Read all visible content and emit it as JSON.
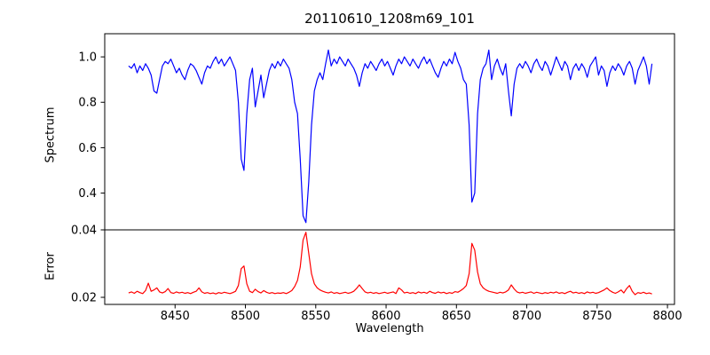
{
  "chart_data": {
    "type": "line",
    "title": "20110610_1208m69_101",
    "xlabel": "Wavelength",
    "grid": false,
    "legend": "none",
    "xlim": [
      8400,
      8805
    ],
    "x_ticks": [
      "8450",
      "8500",
      "8550",
      "8600",
      "8650",
      "8700",
      "8750",
      "8800"
    ],
    "x_start": 8417,
    "x_step": 2,
    "line_color_spectrum": "#0000ff",
    "line_color_error": "#ff0000",
    "panels": [
      {
        "ylabel": "Spectrum",
        "ylim": [
          0.238,
          1.102
        ],
        "y_ticks": [
          "0.4",
          "0.6",
          "0.8",
          "1.0"
        ],
        "features_note": "absorption lines near 8436, 8498, 8542, 8662, 8688 Angstrom",
        "series": [
          {
            "name": "spectrum",
            "color": "#0000ff",
            "values": [
              0.96,
              0.95,
              0.97,
              0.93,
              0.96,
              0.94,
              0.97,
              0.95,
              0.92,
              0.85,
              0.84,
              0.9,
              0.96,
              0.98,
              0.97,
              0.99,
              0.96,
              0.93,
              0.95,
              0.92,
              0.9,
              0.94,
              0.97,
              0.96,
              0.94,
              0.91,
              0.88,
              0.93,
              0.96,
              0.95,
              0.98,
              1.0,
              0.97,
              0.99,
              0.96,
              0.98,
              1.0,
              0.97,
              0.94,
              0.8,
              0.55,
              0.5,
              0.75,
              0.9,
              0.95,
              0.78,
              0.85,
              0.92,
              0.82,
              0.88,
              0.94,
              0.97,
              0.95,
              0.98,
              0.96,
              0.99,
              0.97,
              0.95,
              0.9,
              0.8,
              0.75,
              0.55,
              0.3,
              0.27,
              0.45,
              0.7,
              0.85,
              0.9,
              0.93,
              0.9,
              0.97,
              1.03,
              0.96,
              0.99,
              0.97,
              1.0,
              0.98,
              0.96,
              0.99,
              0.97,
              0.95,
              0.92,
              0.87,
              0.93,
              0.97,
              0.95,
              0.98,
              0.96,
              0.94,
              0.97,
              0.99,
              0.96,
              0.98,
              0.95,
              0.92,
              0.96,
              0.99,
              0.97,
              1.0,
              0.98,
              0.96,
              0.99,
              0.97,
              0.95,
              0.98,
              1.0,
              0.97,
              0.99,
              0.96,
              0.93,
              0.91,
              0.95,
              0.98,
              0.96,
              0.99,
              0.97,
              1.02,
              0.98,
              0.95,
              0.9,
              0.88,
              0.7,
              0.36,
              0.4,
              0.75,
              0.9,
              0.95,
              0.97,
              1.03,
              0.9,
              0.96,
              0.99,
              0.95,
              0.92,
              0.97,
              0.85,
              0.74,
              0.88,
              0.95,
              0.97,
              0.95,
              0.98,
              0.96,
              0.93,
              0.97,
              0.99,
              0.96,
              0.94,
              0.98,
              0.96,
              0.92,
              0.96,
              1.0,
              0.97,
              0.94,
              0.98,
              0.96,
              0.9,
              0.95,
              0.97,
              0.94,
              0.97,
              0.95,
              0.91,
              0.96,
              0.98,
              1.0,
              0.92,
              0.96,
              0.94,
              0.87,
              0.93,
              0.96,
              0.94,
              0.97,
              0.95,
              0.92,
              0.96,
              0.98,
              0.95,
              0.88,
              0.94,
              0.97,
              1.0,
              0.96,
              0.88,
              0.97
            ]
          }
        ]
      },
      {
        "ylabel": "Error",
        "ylim": [
          0.0179,
          0.04
        ],
        "y_ticks": [
          "0.02",
          "0.04"
        ],
        "features_note": "error spikes at absorption-line wavelengths 8498, 8542, 8662",
        "series": [
          {
            "name": "error",
            "color": "#ff0000",
            "values": [
              0.0213,
              0.0216,
              0.0212,
              0.0218,
              0.0214,
              0.0211,
              0.022,
              0.0242,
              0.0218,
              0.0222,
              0.0228,
              0.0216,
              0.0213,
              0.0217,
              0.0226,
              0.0214,
              0.0212,
              0.0216,
              0.0213,
              0.0215,
              0.0212,
              0.0214,
              0.0211,
              0.0215,
              0.0218,
              0.0228,
              0.0216,
              0.0212,
              0.0214,
              0.0211,
              0.0213,
              0.021,
              0.0214,
              0.0212,
              0.0215,
              0.0213,
              0.0211,
              0.0214,
              0.0218,
              0.0235,
              0.0285,
              0.0293,
              0.024,
              0.0218,
              0.0214,
              0.0224,
              0.0217,
              0.0213,
              0.022,
              0.0215,
              0.0212,
              0.0214,
              0.0211,
              0.0213,
              0.0212,
              0.0214,
              0.0211,
              0.0215,
              0.022,
              0.0232,
              0.025,
              0.029,
              0.037,
              0.0393,
              0.033,
              0.027,
              0.024,
              0.0228,
              0.0222,
              0.0218,
              0.0215,
              0.0213,
              0.0216,
              0.0212,
              0.0214,
              0.0211,
              0.0213,
              0.0215,
              0.0212,
              0.0214,
              0.0218,
              0.0226,
              0.0237,
              0.0226,
              0.0216,
              0.0213,
              0.0215,
              0.0212,
              0.0214,
              0.0211,
              0.0213,
              0.0215,
              0.0212,
              0.0214,
              0.0216,
              0.0211,
              0.0228,
              0.0222,
              0.0213,
              0.0215,
              0.0212,
              0.0214,
              0.0211,
              0.0216,
              0.0213,
              0.0215,
              0.0212,
              0.0218,
              0.0214,
              0.0212,
              0.0216,
              0.0213,
              0.0215,
              0.0211,
              0.0214,
              0.0212,
              0.0217,
              0.0215,
              0.022,
              0.0226,
              0.0235,
              0.027,
              0.036,
              0.034,
              0.0275,
              0.024,
              0.0228,
              0.0222,
              0.0218,
              0.0216,
              0.0214,
              0.0212,
              0.0215,
              0.0213,
              0.0216,
              0.0222,
              0.0237,
              0.0225,
              0.0216,
              0.0213,
              0.0215,
              0.0212,
              0.0214,
              0.0216,
              0.0212,
              0.0215,
              0.0213,
              0.0211,
              0.0214,
              0.0212,
              0.0215,
              0.0213,
              0.0216,
              0.0212,
              0.0214,
              0.0211,
              0.0215,
              0.0218,
              0.0213,
              0.0215,
              0.0212,
              0.0214,
              0.0211,
              0.0216,
              0.0213,
              0.0215,
              0.0212,
              0.0214,
              0.0218,
              0.0222,
              0.0228,
              0.022,
              0.0215,
              0.0212,
              0.0216,
              0.0222,
              0.0213,
              0.0226,
              0.0235,
              0.0218,
              0.0208,
              0.0214,
              0.0212,
              0.0215,
              0.0211,
              0.0213,
              0.021
            ]
          }
        ]
      }
    ]
  }
}
